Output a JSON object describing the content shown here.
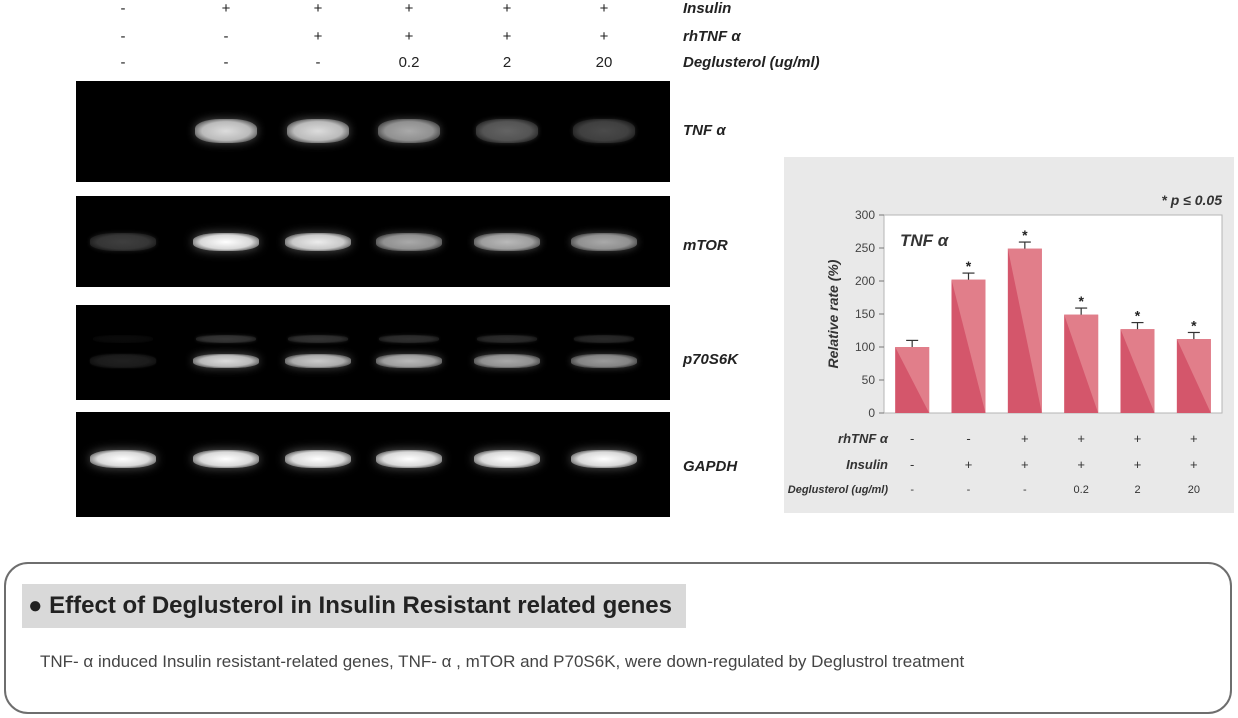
{
  "gel": {
    "condition_rows": [
      {
        "label": "Insulin",
        "values": [
          "-",
          "+",
          "+",
          "+",
          "+",
          "+"
        ]
      },
      {
        "label": "rhTNF α",
        "values": [
          "-",
          "-",
          "+",
          "+",
          "+",
          "+"
        ]
      },
      {
        "label": "Deglusterol (ug/ml)",
        "values": [
          "-",
          "-",
          "-",
          "0.2",
          "2",
          "20"
        ]
      }
    ],
    "blots": [
      {
        "label": "TNF α",
        "intensity": [
          0.0,
          0.9,
          0.9,
          0.75,
          0.5,
          0.4
        ]
      },
      {
        "label": "mTOR",
        "intensity": [
          0.35,
          1.0,
          0.95,
          0.75,
          0.8,
          0.75
        ]
      },
      {
        "label": "p70S6K",
        "intensity": [
          0.2,
          0.9,
          0.85,
          0.8,
          0.75,
          0.7
        ]
      },
      {
        "label": "GAPDH",
        "intensity": [
          1.0,
          1.0,
          1.0,
          1.0,
          1.0,
          1.0
        ]
      }
    ]
  },
  "chart_data": {
    "type": "bar",
    "title": "TNF α",
    "ylabel": "Relative rate (%)",
    "ylim": [
      0,
      300
    ],
    "yticks": [
      0,
      50,
      100,
      150,
      200,
      250,
      300
    ],
    "significance_note": "* p ≤ 0.05",
    "values": [
      100,
      202,
      249,
      149,
      127,
      112
    ],
    "errors": [
      10,
      10,
      10,
      10,
      10,
      10
    ],
    "significant_mark": "*",
    "significant": [
      false,
      true,
      true,
      true,
      true,
      true
    ],
    "condition_rows": [
      {
        "label": "rhTNF α",
        "values": [
          "-",
          "-",
          "+",
          "+",
          "+",
          "+"
        ]
      },
      {
        "label": "Insulin",
        "values": [
          "-",
          "+",
          "+",
          "+",
          "+",
          "+"
        ]
      },
      {
        "label": "Deglusterol (ug/ml)",
        "values": [
          "-",
          "-",
          "-",
          "0.2",
          "2",
          "20"
        ]
      }
    ],
    "bar_color": "#d4566b",
    "bar_color_light": "#e3858f"
  },
  "summary": {
    "title": "● Effect of Deglusterol in Insulin Resistant related genes",
    "text": "TNF- α induced Insulin resistant-related genes, TNF- α , mTOR and P70S6K, were down-regulated by Deglustrol treatment"
  }
}
